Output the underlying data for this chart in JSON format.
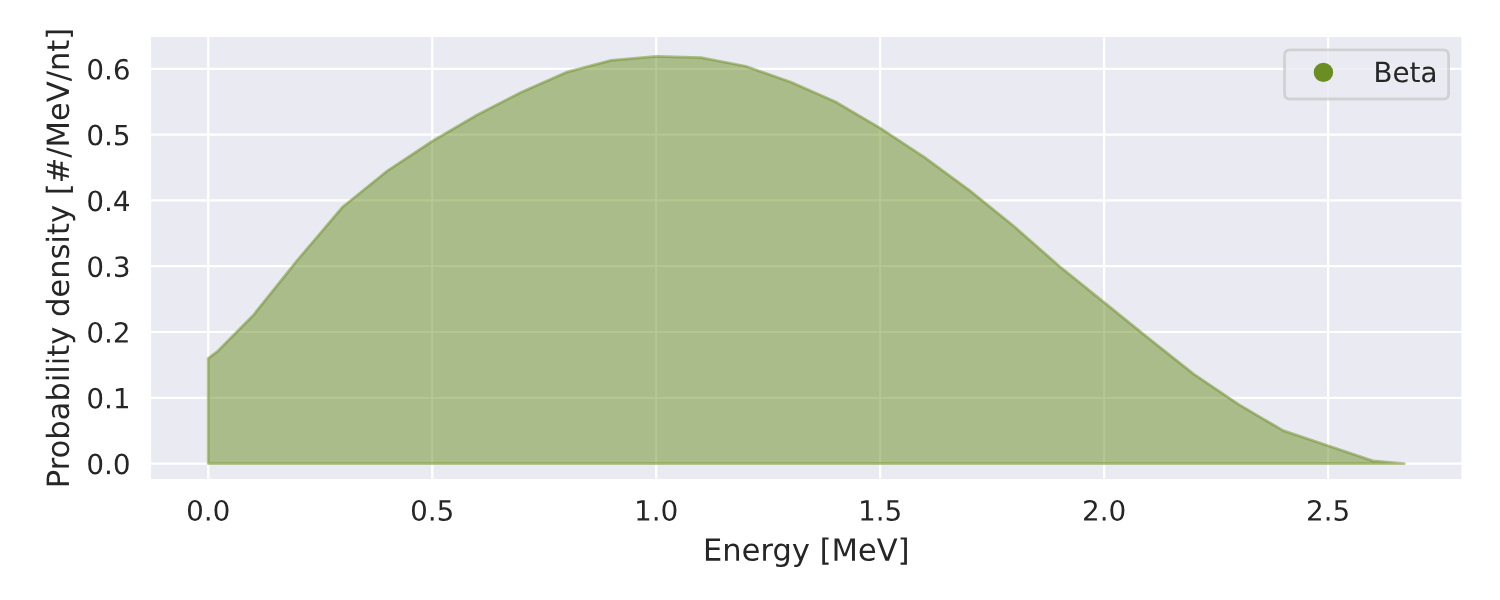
{
  "chart_data": {
    "type": "area",
    "xlabel": "Energy [MeV]",
    "ylabel": "Probability density [#/MeV/nt]",
    "series": [
      {
        "name": "Beta",
        "color": "#6b8e23",
        "x": [
          0,
          0.02,
          0.1,
          0.2,
          0.25,
          0.3,
          0.4,
          0.5,
          0.6,
          0.7,
          0.8,
          0.9,
          1.0,
          1.1,
          1.2,
          1.3,
          1.4,
          1.5,
          1.6,
          1.7,
          1.8,
          1.9,
          2.0,
          2.1,
          2.2,
          2.3,
          2.4,
          2.5,
          2.6,
          2.67
        ],
        "values": [
          0.16,
          0.17,
          0.225,
          0.31,
          0.35,
          0.39,
          0.445,
          0.49,
          0.53,
          0.565,
          0.595,
          0.613,
          0.619,
          0.617,
          0.604,
          0.58,
          0.55,
          0.51,
          0.465,
          0.415,
          0.36,
          0.3,
          0.245,
          0.19,
          0.136,
          0.09,
          0.05,
          0.027,
          0.004,
          0.0
        ]
      }
    ],
    "xlim": [
      -0.13,
      2.8
    ],
    "ylim": [
      -0.025,
      0.65
    ],
    "xticks": [
      {
        "value": 0,
        "label": "0.0"
      },
      0.5,
      {
        "value": 1,
        "label": "1.0"
      },
      1.5,
      {
        "value": 2,
        "label": "2.0"
      },
      2.5
    ],
    "yticks": [
      {
        "value": 0,
        "label": "0.0"
      },
      0.1,
      0.2,
      0.3,
      0.4,
      0.5,
      0.6
    ],
    "grid": true,
    "legend": "top right"
  }
}
